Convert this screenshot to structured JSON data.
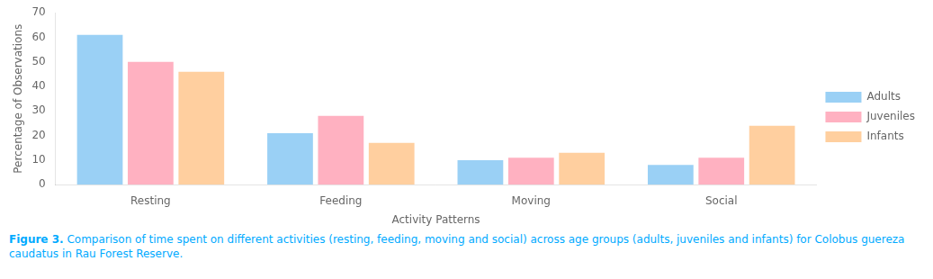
{
  "chart_data": {
    "type": "bar",
    "categories": [
      "Resting",
      "Feeding",
      "Moving",
      "Social"
    ],
    "series": [
      {
        "name": "Adults",
        "values": [
          61,
          21,
          10,
          8
        ]
      },
      {
        "name": "Juveniles",
        "values": [
          50,
          28,
          11,
          11
        ]
      },
      {
        "name": "Infants",
        "values": [
          46,
          17,
          13,
          24
        ]
      }
    ],
    "xlabel": "Activity Patterns",
    "ylabel": "Percentage of Observations",
    "ylim": [
      0,
      70
    ],
    "yticks": [
      0,
      10,
      20,
      30,
      40,
      50,
      60,
      70
    ],
    "grid": false,
    "legend": "right",
    "annotations": [
      {
        "text": "Figure 3.",
        "bold": true,
        "color": "#00aaff"
      },
      {
        "text": " Comparison of time spent on different activities (resting, feeding, moving and social) across age groups (adults, juveniles and infants) for Colobus guereza caudatus in Rau Forest Reserve.",
        "bold": false,
        "color": "#00aaff"
      }
    ]
  }
}
